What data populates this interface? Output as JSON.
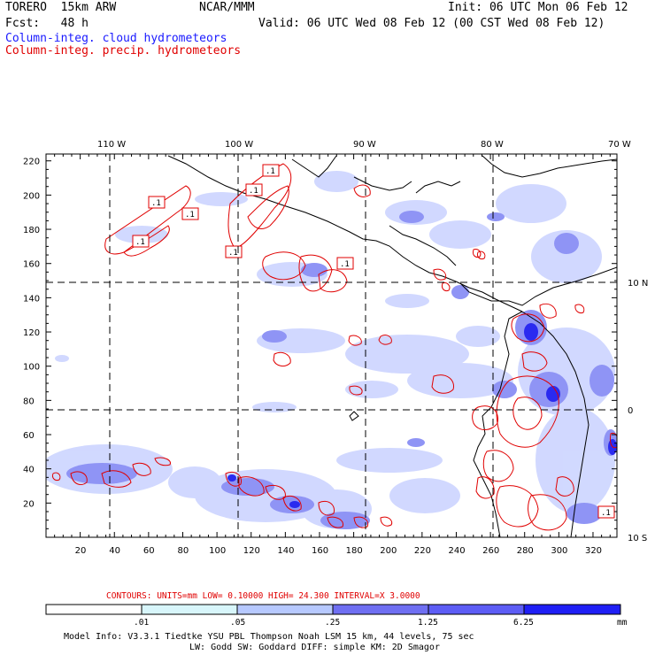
{
  "header": {
    "model": "TORERO  15km ARW",
    "org": "NCAR/MMM",
    "init": "Init: 06 UTC Mon 06 Feb 12",
    "fcst": "Fcst:   48 h",
    "valid": "Valid: 06 UTC Wed 08 Feb 12 (00 CST Wed 08 Feb 12)",
    "field1": "Column-integ. cloud hydrometeors",
    "field2": "Column-integ. precip. hydrometeors"
  },
  "map": {
    "top_lon_labels": [
      "110 W",
      "100 W",
      "90 W",
      "80 W",
      "70 W"
    ],
    "right_lat_labels": [
      "10 N",
      "0",
      "10 S"
    ],
    "y_ticks": [
      "220",
      "200",
      "180",
      "160",
      "140",
      "120",
      "100",
      "80",
      "60",
      "40",
      "20"
    ],
    "x_ticks": [
      "20",
      "40",
      "60",
      "80",
      "100",
      "120",
      "140",
      "160",
      "180",
      "200",
      "220",
      "240",
      "260",
      "280",
      "300",
      "320"
    ],
    "contour_label": ".1"
  },
  "contours_info": {
    "label": "CONTOURS:  UNITS=mm  LOW= 0.10000      HIGH=  24.300      INTERVAL=X  3.0000"
  },
  "colorbar": {
    "ticks": [
      ".01",
      ".05",
      ".25",
      "1.25",
      "6.25"
    ],
    "unit": "mm",
    "colors": [
      "#ffffff",
      "#d8f6fb",
      "#b7c9ff",
      "#a3a8ff",
      "#6f6ff2",
      "#5d5df5",
      "#1f1ff5"
    ]
  },
  "footer": {
    "line1": "Model Info: V3.3.1   Tiedtke YSU PBL  Thompson    Noah LSM  15 km,   44 levels,   75 sec",
    "line2": "LW: Godd SW: Goddard DIFF: simple KM: 2D Smagor"
  }
}
